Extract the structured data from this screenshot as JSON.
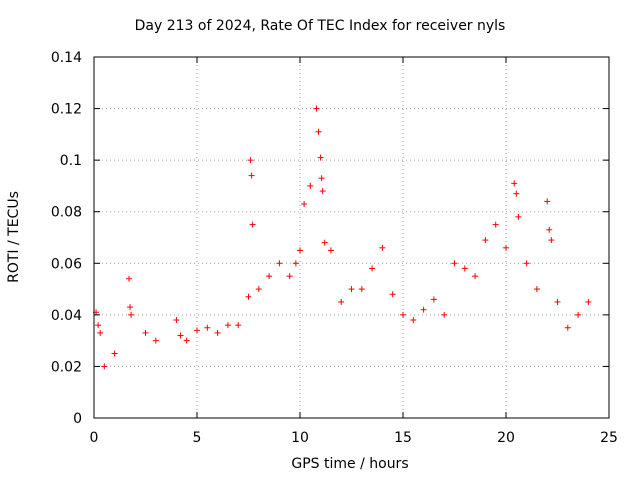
{
  "chart_data": {
    "type": "scatter",
    "title": "Day 213 of 2024, Rate Of TEC Index for receiver nyls",
    "xlabel": "GPS time / hours",
    "ylabel": "ROTI / TECUs",
    "xlim": [
      0,
      25
    ],
    "ylim": [
      0,
      0.14
    ],
    "x_ticks": [
      "0",
      "5",
      "10",
      "15",
      "20",
      "25"
    ],
    "y_ticks": [
      "0",
      "0.02",
      "0.04",
      "0.06",
      "0.08",
      "0.1",
      "0.12",
      "0.14"
    ],
    "grid": true,
    "marker": "+",
    "color": "#ff0000",
    "series": [
      {
        "x": [
          0.1,
          0.2,
          0.3,
          0.5,
          1.0,
          1.7,
          1.75,
          1.8,
          2.5,
          3.0,
          4.0,
          4.2,
          4.5,
          5.0,
          5.5,
          6.0,
          6.5,
          7.0,
          7.5,
          7.6,
          7.65,
          7.7,
          8.0,
          8.5,
          9.0,
          9.5,
          9.8,
          10.0,
          10.2,
          10.5,
          10.8,
          10.9,
          11.0,
          11.05,
          11.1,
          11.2,
          11.5,
          12.0,
          12.5,
          13.0,
          13.5,
          14.0,
          14.5,
          15.0,
          15.5,
          16.0,
          16.5,
          17.0,
          17.5,
          18.0,
          18.5,
          19.0,
          19.5,
          20.0,
          20.4,
          20.5,
          20.6,
          21.0,
          21.5,
          22.0,
          22.1,
          22.2,
          22.5,
          23.0,
          23.5,
          24.0
        ],
        "y": [
          0.041,
          0.036,
          0.033,
          0.02,
          0.025,
          0.054,
          0.043,
          0.04,
          0.033,
          0.03,
          0.038,
          0.032,
          0.03,
          0.034,
          0.035,
          0.033,
          0.036,
          0.036,
          0.047,
          0.1,
          0.094,
          0.075,
          0.05,
          0.055,
          0.06,
          0.055,
          0.06,
          0.065,
          0.083,
          0.09,
          0.12,
          0.111,
          0.101,
          0.093,
          0.088,
          0.068,
          0.065,
          0.045,
          0.05,
          0.05,
          0.058,
          0.066,
          0.048,
          0.04,
          0.038,
          0.042,
          0.046,
          0.04,
          0.06,
          0.058,
          0.055,
          0.069,
          0.075,
          0.066,
          0.091,
          0.087,
          0.078,
          0.06,
          0.05,
          0.084,
          0.073,
          0.069,
          0.045,
          0.035,
          0.04,
          0.045
        ]
      }
    ]
  }
}
